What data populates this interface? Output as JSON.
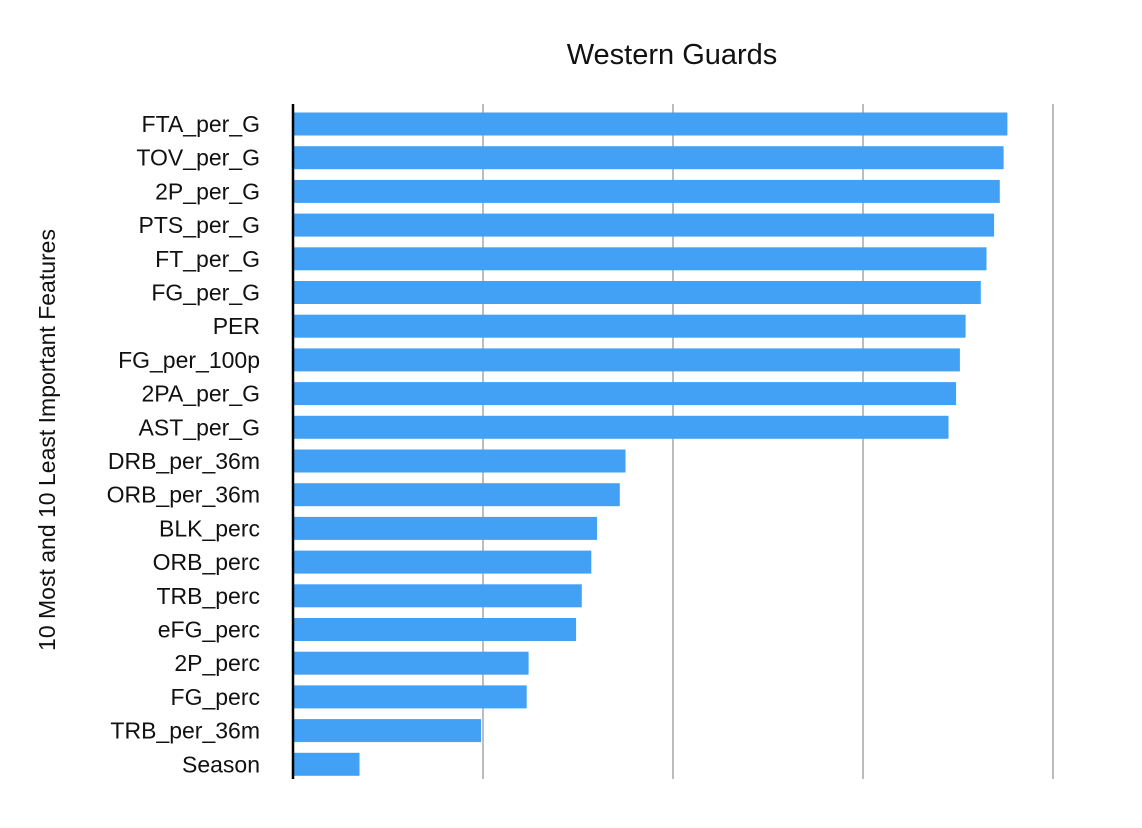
{
  "chart_data": {
    "type": "bar",
    "orientation": "horizontal",
    "title": "Western Guards",
    "xlabel": "",
    "ylabel": "10 Most and 10 Least Important Features",
    "categories": [
      "FTA_per_G",
      "TOV_per_G",
      "2P_per_G",
      "PTS_per_G",
      "FT_per_G",
      "FG_per_G",
      "PER",
      "FG_per_100p",
      "2PA_per_G",
      "AST_per_G",
      "DRB_per_36m",
      "ORB_per_36m",
      "BLK_perc",
      "ORB_perc",
      "TRB_perc",
      "eFG_perc",
      "2P_perc",
      "FG_perc",
      "TRB_per_36m",
      "Season"
    ],
    "values": [
      3.76,
      3.74,
      3.72,
      3.69,
      3.65,
      3.62,
      3.54,
      3.51,
      3.49,
      3.45,
      1.75,
      1.72,
      1.6,
      1.57,
      1.52,
      1.49,
      1.24,
      1.23,
      0.99,
      0.35
    ],
    "xlim": [
      0,
      4
    ],
    "x_ticks": [
      0,
      1,
      2,
      3,
      4
    ],
    "x_tick_labels_visible": false,
    "grid": true,
    "bar_color": "#42a1f5"
  }
}
